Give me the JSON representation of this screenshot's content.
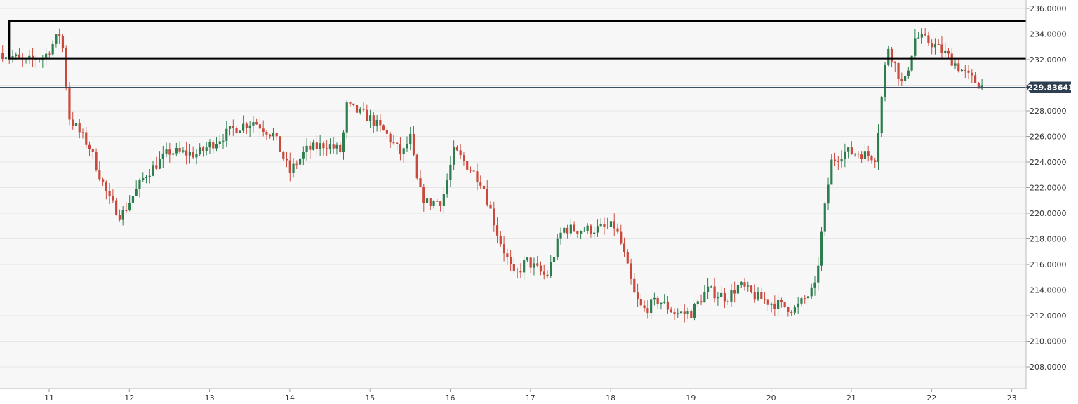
{
  "colors": {
    "up": "#2e7d4f",
    "down": "#c94a3c",
    "grid": "#e6e6e6",
    "plot_bg": "#f7f7f7",
    "price_line": "#3d4f63",
    "price_tag_bg": "#2f3f52",
    "price_tag_text": "#ffffff",
    "box": "#000000"
  },
  "chart_data": {
    "type": "candlestick",
    "title": "",
    "xlabel": "",
    "ylabel": "",
    "ylim": [
      206.6,
      236.8
    ],
    "y_ticks": [
      "208.0000",
      "210.0000",
      "212.0000",
      "214.0000",
      "216.0000",
      "218.0000",
      "220.0000",
      "222.0000",
      "224.0000",
      "226.0000",
      "228.0000",
      "230.0000",
      "232.0000",
      "234.0000",
      "236.0000"
    ],
    "x_ticks": [
      "11",
      "12",
      "13",
      "14",
      "15",
      "16",
      "17",
      "18",
      "19",
      "20",
      "21",
      "22",
      "23"
    ],
    "x_domain_days": [
      10.4,
      23.2
    ],
    "current_price": 229.83641,
    "current_price_label": "229.83641",
    "zone": {
      "upper": 235.0,
      "lower": 232.1,
      "from_day": 10.5
    },
    "anchor_path": [
      [
        10.45,
        232.5
      ],
      [
        10.7,
        231.8
      ],
      [
        10.95,
        232.3
      ],
      [
        11.15,
        234.2
      ],
      [
        11.25,
        227.5
      ],
      [
        11.5,
        225.2
      ],
      [
        11.75,
        221.0
      ],
      [
        11.9,
        219.8
      ],
      [
        12.2,
        223.0
      ],
      [
        12.5,
        224.8
      ],
      [
        12.85,
        224.6
      ],
      [
        13.0,
        225.3
      ],
      [
        13.3,
        226.6
      ],
      [
        13.55,
        227.2
      ],
      [
        13.8,
        226.1
      ],
      [
        14.0,
        223.2
      ],
      [
        14.2,
        224.9
      ],
      [
        14.45,
        225.4
      ],
      [
        14.65,
        224.8
      ],
      [
        14.7,
        228.4
      ],
      [
        15.0,
        227.4
      ],
      [
        15.2,
        226.2
      ],
      [
        15.4,
        224.5
      ],
      [
        15.5,
        226.0
      ],
      [
        15.55,
        224.0
      ],
      [
        15.6,
        222.0
      ],
      [
        15.7,
        220.8
      ],
      [
        15.9,
        221.0
      ],
      [
        16.05,
        224.9
      ],
      [
        16.4,
        222.4
      ],
      [
        16.6,
        218.2
      ],
      [
        16.8,
        215.0
      ],
      [
        16.95,
        216.3
      ],
      [
        17.2,
        215.0
      ],
      [
        17.4,
        218.8
      ],
      [
        17.65,
        218.7
      ],
      [
        17.9,
        218.8
      ],
      [
        18.05,
        219.0
      ],
      [
        18.15,
        217.2
      ],
      [
        18.3,
        213.5
      ],
      [
        18.4,
        212.4
      ],
      [
        18.6,
        213.2
      ],
      [
        18.8,
        212.2
      ],
      [
        19.0,
        212.2
      ],
      [
        19.2,
        214.0
      ],
      [
        19.45,
        213.4
      ],
      [
        19.6,
        214.4
      ],
      [
        19.8,
        213.5
      ],
      [
        20.0,
        213.0
      ],
      [
        20.3,
        212.5
      ],
      [
        20.55,
        214.2
      ],
      [
        20.65,
        219.5
      ],
      [
        20.75,
        224.0
      ],
      [
        20.9,
        224.8
      ],
      [
        21.1,
        224.7
      ],
      [
        21.3,
        224.4
      ],
      [
        21.45,
        233.2
      ],
      [
        21.65,
        229.8
      ],
      [
        21.8,
        233.8
      ],
      [
        22.0,
        233.3
      ],
      [
        22.2,
        232.3
      ],
      [
        22.45,
        230.7
      ],
      [
        22.65,
        229.84
      ]
    ]
  }
}
